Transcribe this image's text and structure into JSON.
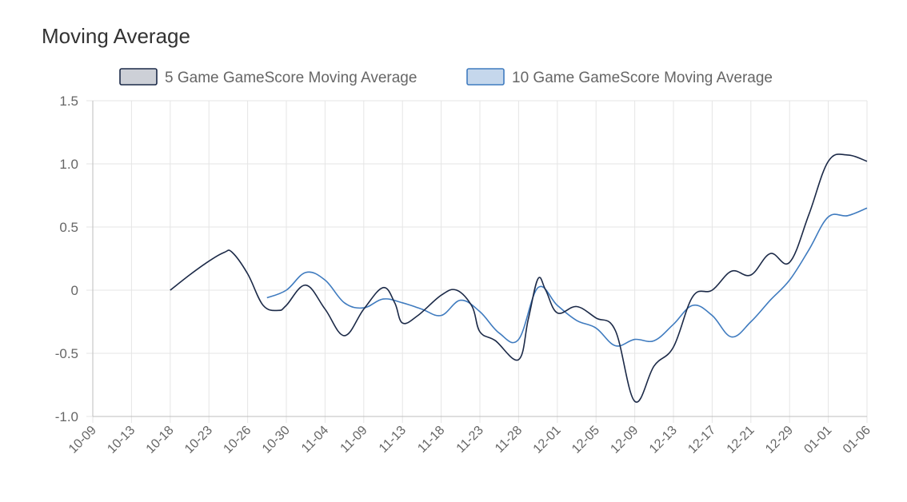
{
  "card": {
    "title": "Moving Average"
  },
  "colors": {
    "grid": "#e5e5e5",
    "axis_text": "#666666",
    "series5": "#1c2a48",
    "series5_fill": "rgba(28,42,72,0.22)",
    "series10": "#3f7bbf",
    "series10_fill": "rgba(63,123,191,0.30)"
  },
  "chart_data": {
    "type": "line",
    "title": "",
    "xlabel": "",
    "ylabel": "",
    "legend_position": "top",
    "grid": true,
    "ylim": [
      -1.0,
      1.5
    ],
    "yticks": [
      "1.5",
      "1.0",
      "0.5",
      "0",
      "-0.5",
      "-1.0"
    ],
    "categories": [
      "10-09",
      "10-13",
      "10-18",
      "10-23",
      "10-26",
      "10-30",
      "11-04",
      "11-09",
      "11-13",
      "11-18",
      "11-23",
      "11-28",
      "12-01",
      "12-05",
      "12-09",
      "12-13",
      "12-17",
      "12-21",
      "12-29",
      "01-01",
      "01-06"
    ],
    "series": [
      {
        "name": "5 Game GameScore Moving Average",
        "points": [
          [
            2,
            0.0
          ],
          [
            2.5,
            0.12
          ],
          [
            3,
            0.23
          ],
          [
            3.4,
            0.3
          ],
          [
            3.6,
            0.3
          ],
          [
            4,
            0.13
          ],
          [
            4.4,
            -0.12
          ],
          [
            4.8,
            -0.16
          ],
          [
            5,
            -0.12
          ],
          [
            5.5,
            0.04
          ],
          [
            6,
            -0.15
          ],
          [
            6.5,
            -0.36
          ],
          [
            7,
            -0.15
          ],
          [
            7.5,
            0.02
          ],
          [
            7.8,
            -0.1
          ],
          [
            8,
            -0.26
          ],
          [
            8.4,
            -0.2
          ],
          [
            9,
            -0.04
          ],
          [
            9.4,
            0.0
          ],
          [
            9.8,
            -0.13
          ],
          [
            10,
            -0.33
          ],
          [
            10.4,
            -0.4
          ],
          [
            11,
            -0.55
          ],
          [
            11.25,
            -0.23
          ],
          [
            11.5,
            0.09
          ],
          [
            11.7,
            0.0
          ],
          [
            12,
            -0.18
          ],
          [
            12.5,
            -0.13
          ],
          [
            13,
            -0.22
          ],
          [
            13.5,
            -0.32
          ],
          [
            14,
            -0.88
          ],
          [
            14.5,
            -0.6
          ],
          [
            15,
            -0.45
          ],
          [
            15.5,
            -0.05
          ],
          [
            16,
            0.0
          ],
          [
            16.5,
            0.15
          ],
          [
            17,
            0.12
          ],
          [
            17.5,
            0.29
          ],
          [
            18,
            0.22
          ],
          [
            18.5,
            0.6
          ],
          [
            19,
            1.02
          ],
          [
            19.5,
            1.07
          ],
          [
            20,
            1.02
          ]
        ]
      },
      {
        "name": "10 Game GameScore Moving Average",
        "points": [
          [
            4.5,
            -0.06
          ],
          [
            5,
            0.0
          ],
          [
            5.5,
            0.14
          ],
          [
            6,
            0.08
          ],
          [
            6.5,
            -0.1
          ],
          [
            7,
            -0.14
          ],
          [
            7.5,
            -0.07
          ],
          [
            8,
            -0.1
          ],
          [
            8.5,
            -0.15
          ],
          [
            9,
            -0.2
          ],
          [
            9.5,
            -0.08
          ],
          [
            10,
            -0.17
          ],
          [
            10.5,
            -0.34
          ],
          [
            11,
            -0.39
          ],
          [
            11.5,
            0.02
          ],
          [
            12,
            -0.12
          ],
          [
            12.5,
            -0.24
          ],
          [
            13,
            -0.3
          ],
          [
            13.5,
            -0.44
          ],
          [
            14,
            -0.39
          ],
          [
            14.5,
            -0.4
          ],
          [
            15,
            -0.27
          ],
          [
            15.5,
            -0.12
          ],
          [
            16,
            -0.2
          ],
          [
            16.5,
            -0.37
          ],
          [
            17,
            -0.25
          ],
          [
            17.5,
            -0.08
          ],
          [
            18,
            0.08
          ],
          [
            18.5,
            0.32
          ],
          [
            19,
            0.58
          ],
          [
            19.5,
            0.59
          ],
          [
            20,
            0.65
          ]
        ]
      }
    ]
  }
}
